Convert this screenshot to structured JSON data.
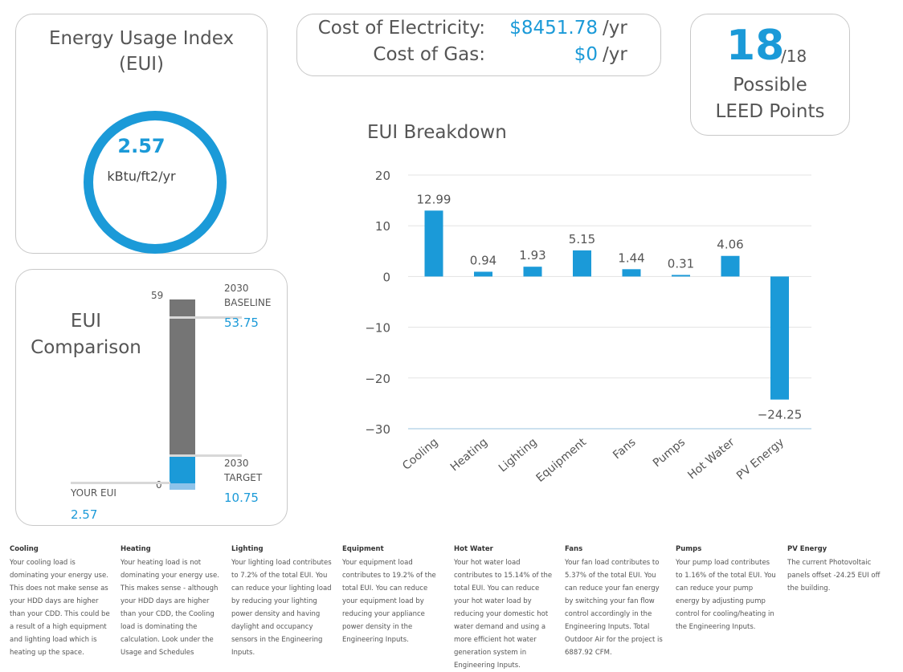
{
  "eui": {
    "title_line1": "Energy Usage Index",
    "title_line2": "(EUI)",
    "value": "2.57",
    "unit": "kBtu/ft2/yr"
  },
  "cost": {
    "electricity_label": "Cost of Electricity:",
    "electricity_value": "$8451.78",
    "gas_label": "Cost of Gas:",
    "gas_value": "$0",
    "unit": "/yr"
  },
  "leed": {
    "points": "18",
    "total": "/18",
    "label_line1": "Possible",
    "label_line2": "LEED Points"
  },
  "comparison": {
    "title_line1": "EUI",
    "title_line2": "Comparison",
    "max_label": "59",
    "zero_label": "0",
    "baseline_label_line1": "2030",
    "baseline_label_line2": "BASELINE",
    "baseline_value": "53.75",
    "target_label_line1": "2030",
    "target_label_line2": "TARGET",
    "target_value": "10.75",
    "your_label": "YOUR EUI",
    "your_value": "2.57",
    "scale_max": 59,
    "baseline": 53.75,
    "target": 10.75,
    "your": 2.57
  },
  "colors": {
    "accent": "#1b9ad8",
    "grey_bar": "#757575",
    "light_bar": "#8ec3ea"
  },
  "chart_data": {
    "type": "bar",
    "title": "EUI Breakdown",
    "categories": [
      "Cooling",
      "Heating",
      "Lighting",
      "Equipment",
      "Fans",
      "Pumps",
      "Hot Water",
      "PV Energy"
    ],
    "values": [
      12.99,
      0.94,
      1.93,
      5.15,
      1.44,
      0.31,
      4.06,
      -24.25
    ],
    "data_labels": [
      "12.99",
      "0.94",
      "1.93",
      "5.15",
      "1.44",
      "0.31",
      "4.06",
      "−24.25"
    ],
    "y_ticks": [
      20,
      10,
      0,
      -10,
      -20,
      -30
    ],
    "y_tick_labels": [
      "20",
      "10",
      "0",
      "−10",
      "−20",
      "−30"
    ],
    "ylim": [
      -30,
      20
    ],
    "grid": true,
    "color": "#1b9ad8"
  },
  "descriptions": [
    {
      "title": "Cooling",
      "text": "Your cooling load is dominating your energy use. This does not make sense as your HDD days are higher than your CDD. This could be a result of a high equipment and lighting load which is heating up the space."
    },
    {
      "title": "Heating",
      "text": "Your heating load is not dominating your energy use. This makes sense - although your HDD days are higher than your CDD, the Cooling load is dominating the calculation. Look under the Usage and Schedules"
    },
    {
      "title": "Lighting",
      "text": "Your lighting load contributes to 7.2% of the total EUI. You can reduce your lighting load by reducing your lighting power density and having daylight and occupancy sensors in the Engineering Inputs."
    },
    {
      "title": "Equipment",
      "text": "Your equipment load contributes to 19.2% of the total EUI. You can reduce your equipment load by reducing your appliance power density in the Engineering Inputs."
    },
    {
      "title": "Hot Water",
      "text": "Your hot water load contributes to 15.14% of the total EUI. You can reduce your hot water load by reducing your domestic hot water demand and using a more efficient hot water generation system in Engineering Inputs."
    },
    {
      "title": "Fans",
      "text": "Your fan load contributes to 5.37% of the total EUI. You can reduce your fan energy by switching your fan flow control accordingly in the Engineering Inputs. Total Outdoor Air for the project is 6887.92 CFM."
    },
    {
      "title": "Pumps",
      "text": "Your pump load contributes to 1.16% of the total EUI. You can reduce your pump energy by adjusting pump control for cooling/heating in the Engineering Inputs."
    },
    {
      "title": "PV Energy",
      "text": "The current Photovoltaic panels offset -24.25 EUI off the building."
    }
  ]
}
